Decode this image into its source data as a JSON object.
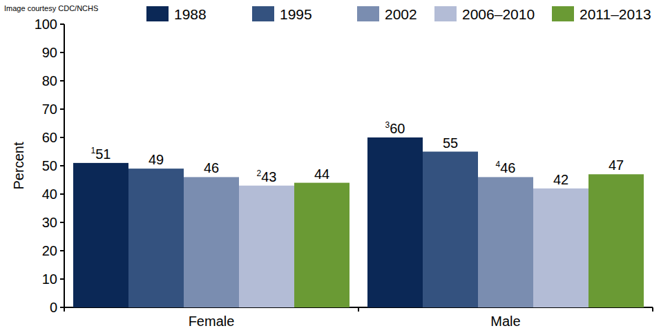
{
  "chart_data": {
    "type": "bar",
    "annotations": [
      "Image courtesy CDC/NCHS"
    ],
    "y_label": "Percent",
    "categories": [
      "Female",
      "Male"
    ],
    "series": [
      {
        "name": "1988",
        "color": "#0b2856",
        "values": [
          51,
          60
        ],
        "footnotes": [
          "1",
          "3"
        ]
      },
      {
        "name": "1995",
        "color": "#34527f",
        "values": [
          49,
          55
        ],
        "footnotes": [
          null,
          null
        ]
      },
      {
        "name": "2002",
        "color": "#7a8db0",
        "values": [
          46,
          46
        ],
        "footnotes": [
          null,
          "4"
        ]
      },
      {
        "name": "2006–2010",
        "color": "#b3bcd6",
        "values": [
          43,
          42
        ],
        "footnotes": [
          "2",
          null
        ]
      },
      {
        "name": "2011–2013",
        "color": "#6a9a34",
        "values": [
          44,
          47
        ],
        "footnotes": [
          null,
          null
        ]
      }
    ],
    "ylim": [
      0,
      100
    ],
    "yticks": [
      0,
      10,
      20,
      30,
      40,
      50,
      60,
      70,
      80,
      90,
      100
    ],
    "grid": false,
    "legend": "top",
    "data_labels": true
  }
}
